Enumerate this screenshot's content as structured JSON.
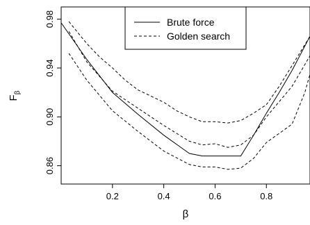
{
  "chart_data": {
    "type": "line",
    "title": "",
    "xlabel": "β",
    "ylabel": "F",
    "ylabel_sub": "β",
    "xlim": [
      0.0,
      0.97
    ],
    "ylim": [
      0.845,
      0.99
    ],
    "xticks": [
      0.2,
      0.4,
      0.6,
      0.8
    ],
    "xtick_labels": [
      "0.2",
      "0.4",
      "0.6",
      "0.8"
    ],
    "yticks": [
      0.86,
      0.9,
      0.94,
      0.98
    ],
    "ytick_labels": [
      "0.86",
      "0.90",
      "0.94",
      "0.98"
    ],
    "grid": false,
    "legend_position": "top-center",
    "series": [
      {
        "name": "Brute force",
        "dash": "solid",
        "color": "#000000",
        "x": [
          0.0,
          0.1,
          0.2,
          0.3,
          0.4,
          0.5,
          0.55,
          0.6,
          0.65,
          0.7,
          0.75,
          0.8,
          0.85,
          0.9,
          0.97
        ],
        "y": [
          0.977,
          0.947,
          0.92,
          0.902,
          0.885,
          0.87,
          0.868,
          0.868,
          0.868,
          0.868,
          0.885,
          0.903,
          0.92,
          0.938,
          0.966
        ]
      },
      {
        "name": "Golden search",
        "dash": "dashed",
        "color": "#000000",
        "x": [
          0.03,
          0.1,
          0.15,
          0.2,
          0.25,
          0.3,
          0.35,
          0.4,
          0.45,
          0.5,
          0.55,
          0.6,
          0.65,
          0.7,
          0.75,
          0.8,
          0.85,
          0.9,
          0.97
        ],
        "y": [
          0.978,
          0.96,
          0.949,
          0.94,
          0.93,
          0.922,
          0.917,
          0.912,
          0.905,
          0.9,
          0.896,
          0.896,
          0.895,
          0.897,
          0.903,
          0.91,
          0.925,
          0.942,
          0.966
        ]
      },
      {
        "name": "",
        "dash": "dashed",
        "color": "#000000",
        "x": [
          0.03,
          0.1,
          0.2,
          0.3,
          0.4,
          0.5,
          0.55,
          0.6,
          0.65,
          0.7,
          0.75,
          0.8,
          0.9,
          0.97
        ],
        "y": [
          0.97,
          0.945,
          0.921,
          0.907,
          0.893,
          0.88,
          0.877,
          0.878,
          0.875,
          0.877,
          0.885,
          0.9,
          0.925,
          0.95
        ]
      },
      {
        "name": "",
        "dash": "dashed",
        "color": "#000000",
        "x": [
          0.03,
          0.1,
          0.2,
          0.3,
          0.4,
          0.5,
          0.55,
          0.6,
          0.65,
          0.7,
          0.75,
          0.8,
          0.9,
          0.95,
          0.97
        ],
        "y": [
          0.952,
          0.93,
          0.905,
          0.888,
          0.872,
          0.861,
          0.859,
          0.859,
          0.857,
          0.858,
          0.866,
          0.879,
          0.894,
          0.92,
          0.935
        ]
      }
    ]
  }
}
